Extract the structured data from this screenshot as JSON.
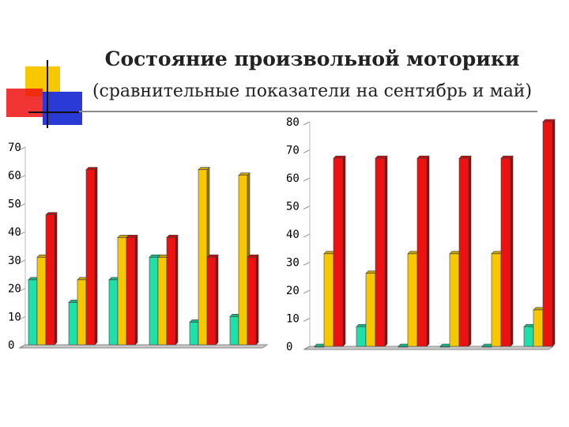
{
  "title": "Состояние произвольной моторики",
  "subtitle": "(сравнительные показатели на сентябрь и май)",
  "colors": {
    "teal": "#1ee0a8",
    "yellow": "#f7c800",
    "red": "#ee1111"
  },
  "chart_data": [
    {
      "type": "bar",
      "ylim": [
        0,
        70
      ],
      "yticks": [
        "0",
        "10",
        "20",
        "30",
        "40",
        "50",
        "60",
        "70"
      ],
      "categories": [
        "",
        "",
        "",
        "",
        "",
        ""
      ],
      "series": [
        {
          "color": "teal",
          "values": [
            23,
            15,
            23,
            31,
            8,
            10
          ]
        },
        {
          "color": "yellow",
          "values": [
            31,
            23,
            38,
            31,
            62,
            60
          ]
        },
        {
          "color": "red",
          "values": [
            46,
            62,
            38,
            38,
            31,
            31
          ]
        }
      ]
    },
    {
      "type": "bar",
      "ylim": [
        0,
        80
      ],
      "yticks": [
        "0",
        "10",
        "20",
        "30",
        "40",
        "50",
        "60",
        "70",
        "80"
      ],
      "categories": [
        "",
        "",
        "",
        "",
        "",
        ""
      ],
      "series": [
        {
          "color": "teal",
          "values": [
            0,
            7,
            0,
            0,
            0,
            7
          ]
        },
        {
          "color": "yellow",
          "values": [
            33,
            26,
            33,
            33,
            33,
            13
          ]
        },
        {
          "color": "red",
          "values": [
            67,
            67,
            67,
            67,
            67,
            80
          ]
        }
      ]
    }
  ]
}
